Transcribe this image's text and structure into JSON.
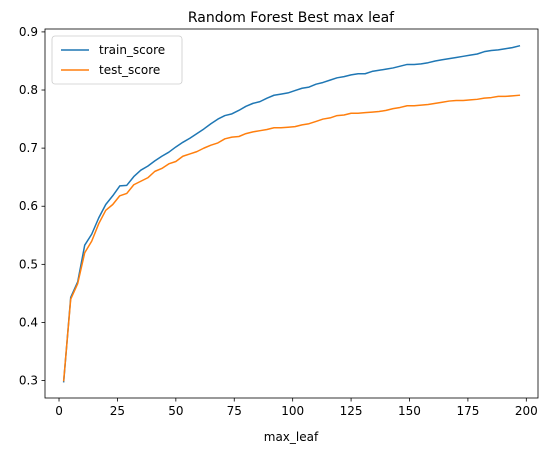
{
  "chart_data": {
    "type": "line",
    "title": "Random Forest Best max leaf",
    "xlabel": "max_leaf",
    "ylabel": "",
    "xlim": [
      -6,
      205
    ],
    "ylim": [
      0.27,
      0.905
    ],
    "xticks": [
      0,
      25,
      50,
      75,
      100,
      125,
      150,
      175,
      200
    ],
    "yticks": [
      0.3,
      0.4,
      0.5,
      0.6,
      0.7,
      0.8,
      0.9
    ],
    "grid": false,
    "legend": "top-left",
    "series": [
      {
        "name": "train_score",
        "color": "#1f77b4",
        "x": [
          2,
          5,
          8,
          11,
          14,
          17,
          20,
          23,
          26,
          29,
          32,
          35,
          38,
          41,
          44,
          47,
          50,
          53,
          56,
          59,
          62,
          65,
          68,
          71,
          74,
          77,
          80,
          83,
          86,
          89,
          92,
          95,
          98,
          101,
          104,
          107,
          110,
          113,
          116,
          119,
          122,
          125,
          128,
          131,
          134,
          137,
          140,
          143,
          146,
          149,
          152,
          155,
          158,
          161,
          164,
          167,
          170,
          173,
          176,
          179,
          182,
          185,
          188,
          191,
          194,
          197
        ],
        "y": [
          0.298,
          0.443,
          0.47,
          0.533,
          0.552,
          0.58,
          0.603,
          0.618,
          0.635,
          0.636,
          0.651,
          0.662,
          0.669,
          0.678,
          0.686,
          0.693,
          0.702,
          0.71,
          0.717,
          0.725,
          0.733,
          0.742,
          0.75,
          0.756,
          0.759,
          0.765,
          0.772,
          0.777,
          0.78,
          0.786,
          0.791,
          0.793,
          0.795,
          0.799,
          0.803,
          0.805,
          0.81,
          0.813,
          0.817,
          0.821,
          0.823,
          0.826,
          0.828,
          0.828,
          0.832,
          0.834,
          0.836,
          0.838,
          0.841,
          0.844,
          0.844,
          0.845,
          0.847,
          0.85,
          0.852,
          0.854,
          0.856,
          0.858,
          0.86,
          0.862,
          0.866,
          0.868,
          0.869,
          0.871,
          0.873,
          0.876
        ]
      },
      {
        "name": "test_score",
        "color": "#ff7f0e",
        "x": [
          2,
          5,
          8,
          11,
          14,
          17,
          20,
          23,
          26,
          29,
          32,
          35,
          38,
          41,
          44,
          47,
          50,
          53,
          56,
          59,
          62,
          65,
          68,
          71,
          74,
          77,
          80,
          83,
          86,
          89,
          92,
          95,
          98,
          101,
          104,
          107,
          110,
          113,
          116,
          119,
          122,
          125,
          128,
          131,
          134,
          137,
          140,
          143,
          146,
          149,
          152,
          155,
          158,
          161,
          164,
          167,
          170,
          173,
          176,
          179,
          182,
          185,
          188,
          191,
          194,
          197
        ],
        "y": [
          0.3,
          0.44,
          0.467,
          0.52,
          0.54,
          0.57,
          0.593,
          0.603,
          0.618,
          0.622,
          0.637,
          0.643,
          0.649,
          0.66,
          0.665,
          0.673,
          0.677,
          0.686,
          0.69,
          0.694,
          0.7,
          0.705,
          0.709,
          0.716,
          0.719,
          0.72,
          0.725,
          0.728,
          0.73,
          0.732,
          0.735,
          0.735,
          0.736,
          0.737,
          0.74,
          0.742,
          0.746,
          0.75,
          0.752,
          0.756,
          0.757,
          0.76,
          0.76,
          0.761,
          0.762,
          0.763,
          0.765,
          0.768,
          0.77,
          0.773,
          0.773,
          0.774,
          0.775,
          0.777,
          0.779,
          0.781,
          0.782,
          0.782,
          0.783,
          0.784,
          0.786,
          0.787,
          0.789,
          0.789,
          0.79,
          0.791
        ]
      }
    ]
  }
}
